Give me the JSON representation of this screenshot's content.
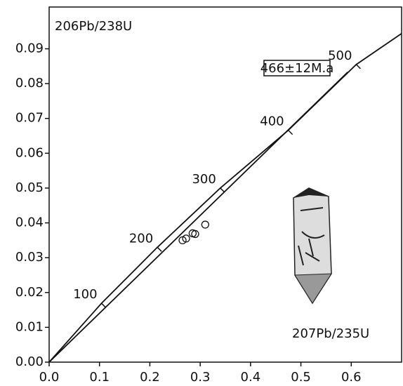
{
  "chart_data": {
    "type": "concordia",
    "y_label": "206Pb/238U",
    "x_label": "207Pb/235U",
    "annotation": "466±12M.a",
    "xlim": [
      0,
      0.7
    ],
    "ylim": [
      0,
      0.102
    ],
    "xticks": [
      {
        "value": 0,
        "label": "0.0"
      },
      0.1,
      0.2,
      0.3,
      0.4,
      0.5,
      0.6
    ],
    "yticks": [
      {
        "value": 0,
        "label": "0.00"
      },
      0.01,
      0.02,
      0.03,
      0.04,
      0.05,
      0.06,
      0.07,
      0.08,
      0.09
    ],
    "concordia": {
      "x": [
        0,
        0.104,
        0.215,
        0.34,
        0.475,
        0.61,
        0.7
      ],
      "y": [
        0,
        0.0169,
        0.033,
        0.05,
        0.0666,
        0.0855,
        0.0944
      ],
      "ages": [
        null,
        100,
        200,
        300,
        400,
        500,
        null
      ]
    },
    "discordia": {
      "x": [
        0,
        0.593
      ],
      "y": [
        0,
        0.0833
      ]
    },
    "points": {
      "x": [
        0.265,
        0.272,
        0.285,
        0.29,
        0.31
      ],
      "y": [
        0.035,
        0.0355,
        0.037,
        0.0368,
        0.0395
      ]
    }
  }
}
